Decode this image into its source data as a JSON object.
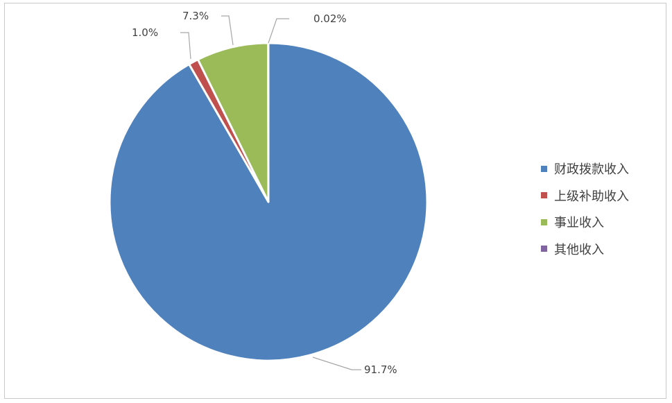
{
  "chart_data": {
    "type": "pie",
    "slices": [
      {
        "name": "财政拨款收入",
        "value": 91.7,
        "label": "91.7%",
        "color": "#4f81bd"
      },
      {
        "name": "上级补助收入",
        "value": 1.0,
        "label": "1.0%",
        "color": "#c0504d"
      },
      {
        "name": "事业收入",
        "value": 7.3,
        "label": "7.3%",
        "color": "#9bbb59"
      },
      {
        "name": "其他收入",
        "value": 0.02,
        "label": "0.02%",
        "color": "#8064a2"
      }
    ],
    "legend_position": "right"
  }
}
